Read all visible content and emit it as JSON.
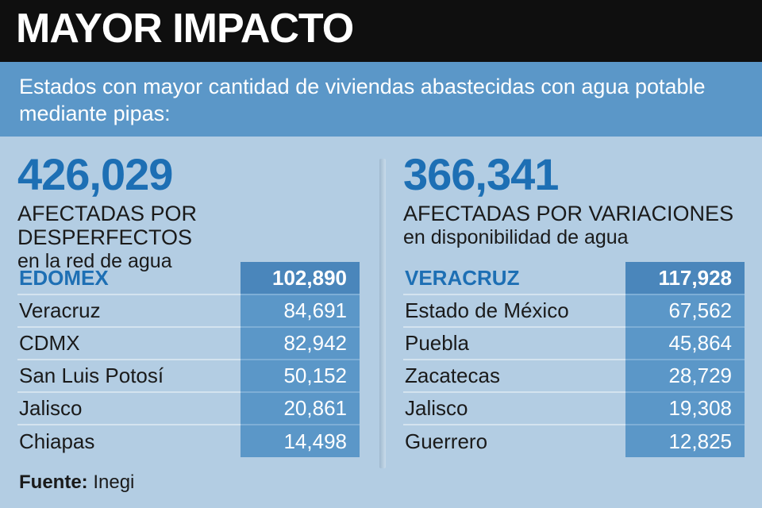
{
  "header": {
    "title": "MAYOR IMPACTO"
  },
  "subtitle": "Estados con mayor cantidad de viviendas abastecidas con agua potable mediante pipas:",
  "colors": {
    "header_bg": "#0f0f0f",
    "accent_blue": "#1d6fb4",
    "bar_blue": "#5b97c8",
    "background": "#b3cde3"
  },
  "source": {
    "label": "Fuente:",
    "value": "Inegi"
  },
  "chart_data": [
    {
      "type": "table",
      "total": "426,029",
      "title": "AFECTADAS POR DESPERFECTOS",
      "subtitle": "en la red de agua",
      "rows": [
        {
          "name": "EDOMEX",
          "value": "102,890"
        },
        {
          "name": "Veracruz",
          "value": "84,691"
        },
        {
          "name": "CDMX",
          "value": "82,942"
        },
        {
          "name": "San Luis Potosí",
          "value": "50,152"
        },
        {
          "name": "Jalisco",
          "value": "20,861"
        },
        {
          "name": "Chiapas",
          "value": "14,498"
        }
      ]
    },
    {
      "type": "table",
      "total": "366,341",
      "title": "AFECTADAS POR VARIACIONES",
      "subtitle": "en disponibilidad de agua",
      "rows": [
        {
          "name": "VERACRUZ",
          "value": "117,928"
        },
        {
          "name": "Estado de México",
          "value": "67,562"
        },
        {
          "name": "Puebla",
          "value": "45,864"
        },
        {
          "name": "Zacatecas",
          "value": "28,729"
        },
        {
          "name": "Jalisco",
          "value": "19,308"
        },
        {
          "name": "Guerrero",
          "value": "12,825"
        }
      ]
    }
  ]
}
